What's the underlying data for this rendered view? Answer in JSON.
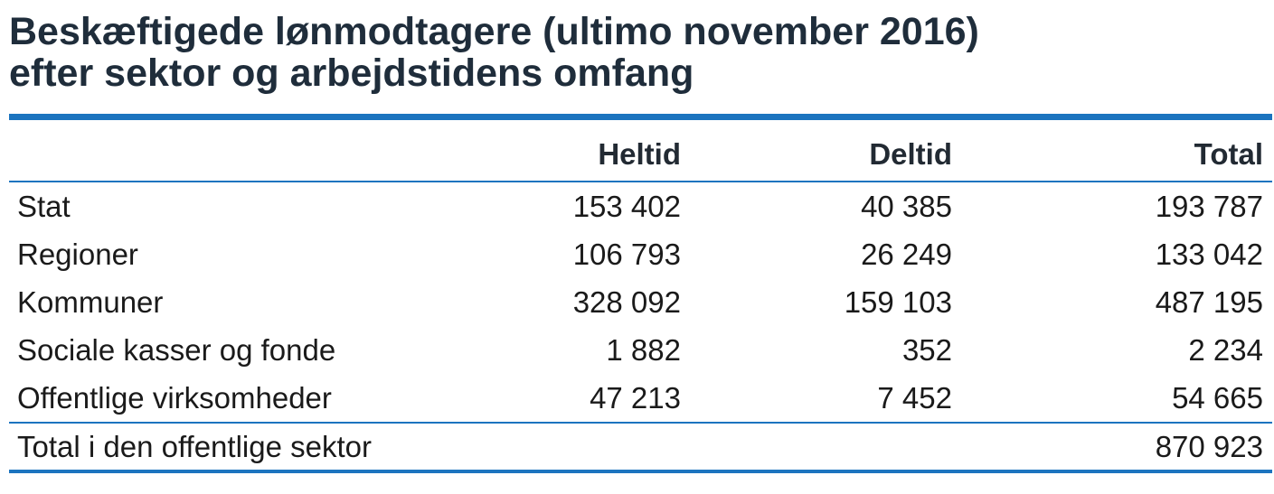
{
  "colors": {
    "rule": "#1c74bf",
    "title": "#1f2d3b",
    "text": "#1a1a1a"
  },
  "chart_data": {
    "type": "table",
    "title": [
      "Beskæftigede lønmodtagere (ultimo november 2016)",
      "efter sektor og arbejdstidens omfang"
    ],
    "columns": [
      "Heltid",
      "Deltid",
      "Total"
    ],
    "rows": [
      {
        "label": "Stat",
        "values": [
          153402,
          40385,
          193787
        ]
      },
      {
        "label": "Regioner",
        "values": [
          106793,
          26249,
          133042
        ]
      },
      {
        "label": "Kommuner",
        "values": [
          328092,
          159103,
          487195
        ]
      },
      {
        "label": "Sociale kasser og fonde",
        "values": [
          1882,
          352,
          2234
        ]
      },
      {
        "label": "Offentlige virksomheder",
        "values": [
          47213,
          7452,
          54665
        ]
      }
    ],
    "total_row": {
      "label": "Total i den offentlige sektor",
      "values": [
        null,
        null,
        870923
      ]
    }
  }
}
